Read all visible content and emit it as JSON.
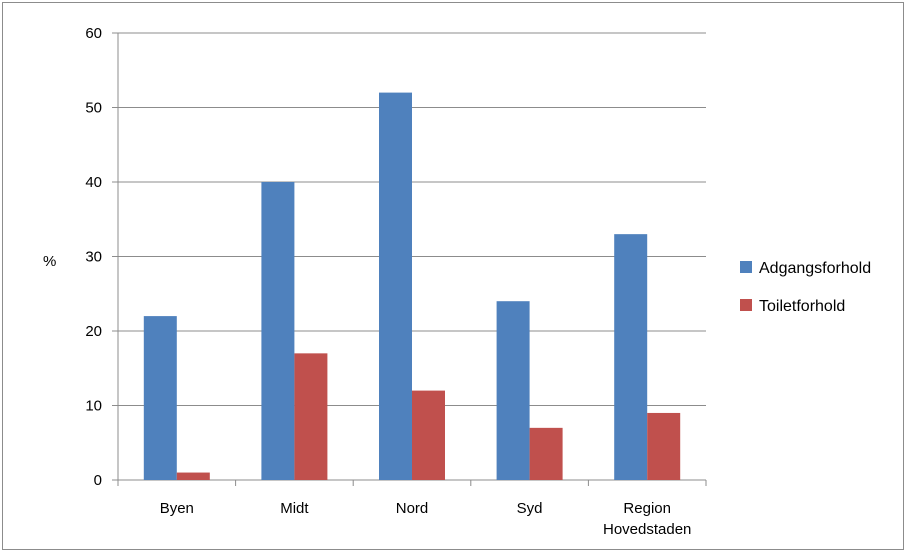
{
  "chart_data": {
    "type": "bar",
    "categories": [
      [
        "Byen"
      ],
      [
        "Midt"
      ],
      [
        "Nord"
      ],
      [
        "Syd"
      ],
      [
        "Region",
        "Hovedstaden"
      ]
    ],
    "series": [
      {
        "name": "Adgangsforhold",
        "color": "#4f81bd",
        "values": [
          22,
          40,
          52,
          24,
          33
        ]
      },
      {
        "name": "Toiletforhold",
        "color": "#c0504d",
        "values": [
          1,
          17,
          12,
          7,
          9
        ]
      }
    ],
    "ylabel": "%",
    "ylim": [
      0,
      60
    ],
    "yticks": [
      0,
      10,
      20,
      30,
      40,
      50,
      60
    ],
    "grid": true,
    "legend_position": "right"
  }
}
